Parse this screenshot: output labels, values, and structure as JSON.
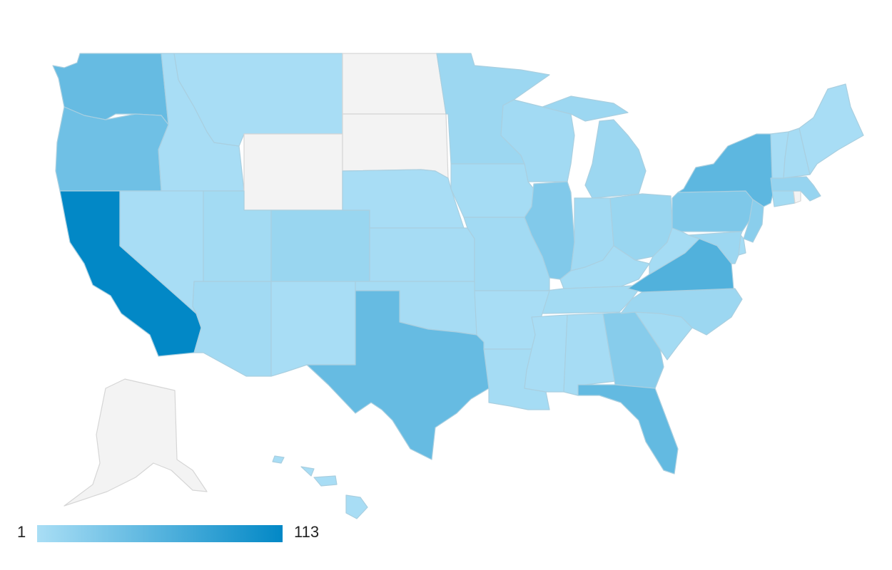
{
  "legend": {
    "min": "1",
    "max": "113"
  },
  "colors": {
    "min": "#a9def5",
    "max": "#0288c6",
    "no_data": "#f3f3f3",
    "border": "#a9cfe0",
    "no_data_border": "#d6d6d6"
  },
  "chart_data": {
    "type": "choropleth",
    "region": "US states",
    "scale": {
      "min": 1,
      "max": 113
    },
    "values": {
      "CA": 113,
      "VA": 60,
      "NY": 52,
      "FL": 48,
      "TX": 46,
      "WA": 46,
      "OR": 40,
      "PA": 30,
      "IL": 28,
      "GA": 24,
      "NJ": 22,
      "CO": 12,
      "MA": 14,
      "MI": 10,
      "MN": 10,
      "OH": 12,
      "NC": 10,
      "MD": 10,
      "MO": 6,
      "WI": 6,
      "AZ": 6,
      "UT": 5,
      "IA": 4,
      "IN": 6,
      "TN": 5,
      "KY": 4,
      "SC": 5,
      "AL": 3,
      "LA": 4,
      "MS": 2,
      "AR": 2,
      "OK": 3,
      "KS": 3,
      "NE": 2,
      "NM": 2,
      "NV": 2,
      "ID": 2,
      "MT": 2,
      "WV": 4,
      "CT": 5,
      "VT": 2,
      "NH": 3,
      "ME": 2,
      "DE": 4,
      "HI": 2,
      "ND": null,
      "SD": null,
      "WY": null,
      "AK": null,
      "RI": null,
      "DC": null
    }
  }
}
